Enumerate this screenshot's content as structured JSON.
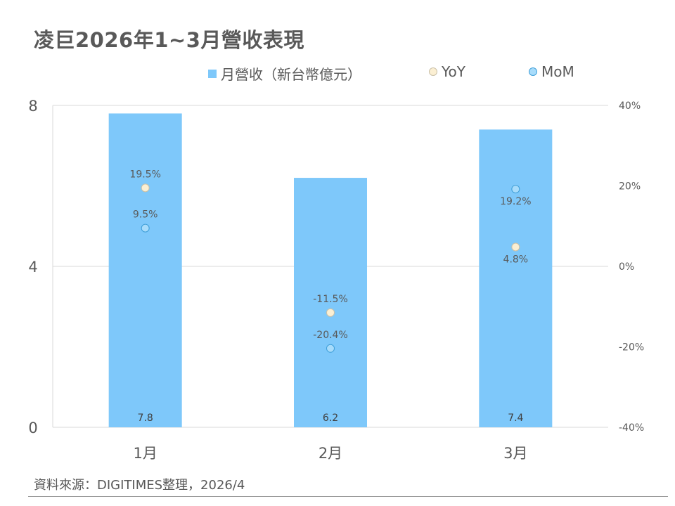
{
  "title": "凌巨2026年1~3月營收表現",
  "legend": {
    "bar_label": "月營收（新台幣億元）",
    "yoy_label": "YoY",
    "mom_label": "MoM"
  },
  "source": "資料來源：DIGITIMES整理，2026/4",
  "colors": {
    "bar": "#7ec8fa",
    "yoy_fill": "#fbefd3",
    "yoy_stroke": "#c9c0a8",
    "mom_fill": "#a8dcfb",
    "mom_stroke": "#3f9fd8",
    "grid": "#d9d9d9"
  },
  "chart_data": {
    "type": "bar",
    "categories": [
      "1月",
      "2月",
      "3月"
    ],
    "revenue": {
      "values": [
        7.8,
        6.2,
        7.4
      ],
      "value_labels": [
        "7.8",
        "6.2",
        "7.4"
      ]
    },
    "yoy": {
      "values": [
        19.5,
        -11.5,
        4.8
      ],
      "value_labels": [
        "19.5%",
        "-11.5%",
        "4.8%"
      ]
    },
    "mom": {
      "values": [
        9.5,
        -20.4,
        19.2
      ],
      "value_labels": [
        "9.5%",
        "-20.4%",
        "19.2%"
      ]
    },
    "y_left": {
      "min": 0,
      "max": 8,
      "ticks": [
        0,
        4,
        8
      ],
      "tick_labels": [
        "0",
        "4",
        "8"
      ]
    },
    "y_right": {
      "min": -40,
      "max": 40,
      "ticks": [
        -40,
        -20,
        0,
        20,
        40
      ],
      "tick_labels": [
        "-40%",
        "-20%",
        "0%",
        "20%",
        "40%"
      ]
    },
    "grid": true,
    "legend_position": "top"
  }
}
